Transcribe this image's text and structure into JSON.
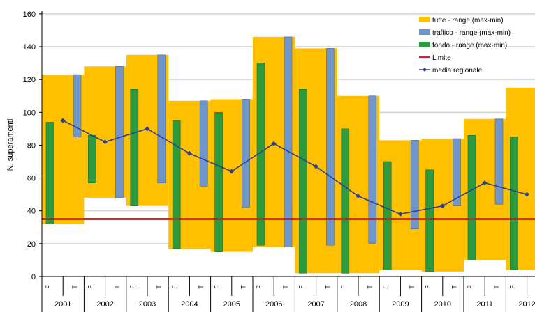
{
  "chart_data": {
    "type": "bar",
    "ylabel": "N. superamenti",
    "ylim": [
      0,
      160
    ],
    "yticks": [
      0,
      20,
      40,
      60,
      80,
      100,
      120,
      140,
      160
    ],
    "grid": true,
    "legend_placement": "top-right",
    "categories": [
      "2001",
      "2002",
      "2003",
      "2004",
      "2005",
      "2006",
      "2007",
      "2008",
      "2009",
      "2010",
      "2011",
      "2012"
    ],
    "sub_labels": [
      "F",
      "T"
    ],
    "legend": [
      {
        "key": "tutte",
        "label": "tutte - range (max-min)"
      },
      {
        "key": "traffico",
        "label": "traffico - range (max-min)"
      },
      {
        "key": "fondo",
        "label": "fondo - range (max-min)"
      },
      {
        "key": "limite",
        "label": "Limite"
      },
      {
        "key": "media",
        "label": "media regionale"
      }
    ],
    "series": [
      {
        "key": "tutte",
        "type": "range_bar",
        "min": [
          32,
          48,
          43,
          17,
          15,
          18,
          2,
          2,
          4,
          3,
          10,
          4
        ],
        "max": [
          123,
          128,
          135,
          107,
          108,
          146,
          139,
          110,
          83,
          84,
          96,
          115
        ]
      },
      {
        "key": "fondo",
        "type": "range_bar",
        "min": [
          32,
          57,
          43,
          17,
          15,
          19,
          2,
          2,
          4,
          3,
          10,
          4
        ],
        "max": [
          94,
          86,
          114,
          95,
          100,
          130,
          114,
          90,
          70,
          65,
          86,
          85
        ]
      },
      {
        "key": "traffico",
        "type": "range_bar",
        "min": [
          85,
          48,
          57,
          55,
          42,
          18,
          19,
          20,
          29,
          43,
          44,
          38
        ],
        "max": [
          123,
          128,
          135,
          107,
          108,
          146,
          139,
          110,
          83,
          84,
          96,
          115
        ]
      },
      {
        "key": "media",
        "type": "line",
        "values": [
          95,
          82,
          90,
          75,
          64,
          81,
          67,
          49,
          38,
          43,
          57,
          50
        ]
      },
      {
        "key": "limite",
        "type": "hline",
        "value": 35
      }
    ],
    "colors": {
      "tutte": "#FFC000",
      "traffico": "#7096CC",
      "fondo": "#2E9A3E",
      "limite": "#E02020",
      "media": "#2F3E8E",
      "grid": "#BFBFBF"
    }
  }
}
